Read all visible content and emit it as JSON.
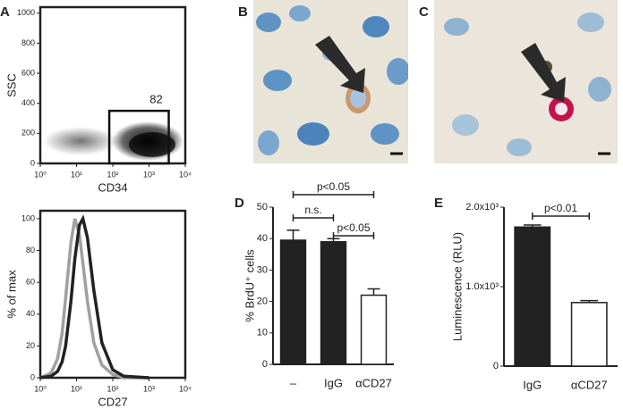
{
  "images": [
    {
      "label": "B"
    },
    {
      "label": "C"
    }
  ],
  "chart_data": [
    {
      "type": "scatter",
      "panel_label": "A",
      "xlabel": "CD34",
      "ylabel": "SSC",
      "xscale": "log",
      "xlim": [
        1,
        10000
      ],
      "xticks": [
        {
          "value": 1,
          "label": "10⁰"
        },
        {
          "value": 10,
          "label": "10¹"
        },
        {
          "value": 100,
          "label": "10²"
        },
        {
          "value": 1000,
          "label": "10³"
        },
        {
          "value": 10000,
          "label": "10⁴"
        }
      ],
      "ylim": [
        0,
        1040
      ],
      "yticks": [
        0,
        200,
        400,
        600,
        800,
        1000
      ],
      "gate": {
        "xlim": [
          80,
          3500
        ],
        "ylim": [
          0,
          350
        ],
        "label": "82"
      },
      "color": "#111111"
    },
    {
      "type": "line",
      "xlabel": "CD27",
      "ylabel": "% of max",
      "xscale": "log",
      "xlim": [
        1,
        10000
      ],
      "xticks": [
        {
          "value": 1,
          "label": "10⁰"
        },
        {
          "value": 10,
          "label": "10¹"
        },
        {
          "value": 100,
          "label": "10²"
        },
        {
          "value": 1000,
          "label": "10³"
        },
        {
          "value": 10000,
          "label": "10⁴"
        }
      ],
      "ylim": [
        0,
        105
      ],
      "yticks": [
        0,
        20,
        40,
        60,
        80,
        100
      ],
      "x": [
        1,
        2,
        3,
        4,
        5,
        7,
        9,
        12,
        15,
        20,
        30,
        50,
        100,
        200,
        1000
      ],
      "series": [
        {
          "color": "#a0a0a0",
          "values": [
            0,
            3,
            12,
            28,
            50,
            85,
            100,
            90,
            72,
            48,
            22,
            8,
            2,
            0,
            0
          ]
        },
        {
          "color": "#222222",
          "values": [
            0,
            1,
            4,
            10,
            20,
            48,
            75,
            96,
            100,
            88,
            55,
            22,
            5,
            1,
            0
          ]
        }
      ]
    },
    {
      "type": "bar",
      "panel_label": "D",
      "ylabel": "% BrdU⁺ cells",
      "categories": [
        "–",
        "IgG",
        "αCD27"
      ],
      "values": [
        39.5,
        39,
        22
      ],
      "errors": [
        3.2,
        1,
        2
      ],
      "colors": [
        "#222222",
        "#222222",
        "#ffffff"
      ],
      "ylim": [
        0,
        50
      ],
      "yticks": [
        0,
        10,
        20,
        30,
        40,
        50
      ],
      "comparisons": [
        {
          "from": 0,
          "to": 2,
          "label": "p<0.05"
        },
        {
          "from": 0,
          "to": 1,
          "label": "n.s."
        },
        {
          "from": 1,
          "to": 2,
          "label": "p<0.05"
        }
      ]
    },
    {
      "type": "bar",
      "panel_label": "E",
      "ylabel": "Luminescence (RLU)",
      "categories": [
        "IgG",
        "αCD27"
      ],
      "values": [
        1750,
        800
      ],
      "errors": [
        25,
        25
      ],
      "colors": [
        "#222222",
        "#ffffff"
      ],
      "ylim": [
        0,
        2000
      ],
      "yticks": [
        0,
        {
          "value": 1000,
          "label": "1.0x10³"
        },
        {
          "value": 2000,
          "label": "2.0x10³"
        }
      ],
      "comparisons": [
        {
          "from": 0,
          "to": 1,
          "label": "p<0.01"
        }
      ]
    }
  ]
}
